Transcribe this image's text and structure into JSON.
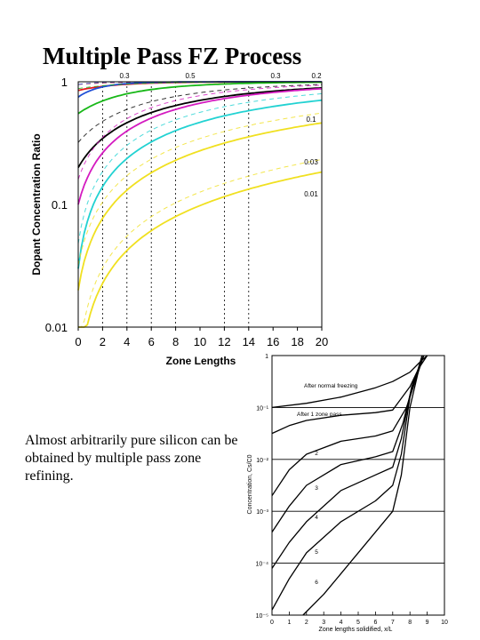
{
  "page": {
    "title": "Multiple Pass FZ Process",
    "caption": "Almost arbitrarily pure silicon can be obtained by multiple pass zone refining."
  },
  "chart_data": [
    {
      "type": "line",
      "xlabel": "Zone Lengths",
      "ylabel": "Dopant Concentration Ratio",
      "x_ticks": [
        "0",
        "2",
        "4",
        "6",
        "8",
        "10",
        "12",
        "14",
        "16",
        "18",
        "20"
      ],
      "y_ticks": [
        "0.01",
        "0.1",
        "1"
      ],
      "xlim": [
        0,
        20
      ],
      "ylim_log10": [
        -2,
        0
      ],
      "yscale": "log",
      "curve_labels": [
        "0.3",
        "0.5",
        "0.3",
        "0.2",
        "0.1",
        "0.03",
        "0.01"
      ],
      "vertical_markers": [
        2,
        4,
        6,
        8,
        12,
        14
      ],
      "series": [
        {
          "color": "#e41a1c",
          "k": 0.3,
          "start": 0.85
        },
        {
          "color": "#1f4fd6",
          "k": 0.5,
          "start": 0.75
        },
        {
          "color": "#18b818",
          "k": 0.2,
          "start": 0.55
        },
        {
          "color": "#000000",
          "k": 0.1,
          "start": 0.2
        },
        {
          "color": "#d41ac0",
          "k": 0.1,
          "start": 0.1
        },
        {
          "color": "#22d2d2",
          "k": 0.06,
          "start": 0.03
        },
        {
          "color": "#f0e020",
          "k": 0.03,
          "start": 0.02
        },
        {
          "color": "#f0e020",
          "k": 0.01,
          "start": 0.003
        }
      ]
    },
    {
      "type": "line",
      "xlabel": "Zone lengths solidified, x/L",
      "ylabel": "Concentration, Cs/C0",
      "x_ticks": [
        "0",
        "1",
        "2",
        "3",
        "4",
        "5",
        "6",
        "7",
        "8",
        "9",
        "10"
      ],
      "y_ticks": [
        "1",
        "10⁻¹",
        "10⁻²",
        "10⁻³",
        "10⁻⁴",
        "10⁻⁵"
      ],
      "xlim": [
        0,
        10
      ],
      "ylim_log10": [
        -5,
        0
      ],
      "yscale": "log",
      "annotations": [
        "After normal freezing",
        "After 1 zone pass",
        "2",
        "3",
        "4",
        "5",
        "6"
      ],
      "series": [
        {
          "name": "After normal freezing",
          "x": [
            0,
            2,
            4,
            6,
            7,
            8,
            8.6,
            9.0
          ],
          "log10y": [
            -1.0,
            -0.92,
            -0.8,
            -0.62,
            -0.5,
            -0.32,
            -0.12,
            0
          ]
        },
        {
          "name": "After 1 zone pass",
          "x": [
            0,
            1,
            2,
            4,
            6,
            7,
            8,
            8.5,
            9.0
          ],
          "log10y": [
            -1.5,
            -1.35,
            -1.25,
            -1.15,
            -1.1,
            -1.05,
            -0.6,
            -0.25,
            0
          ]
        },
        {
          "name": "2",
          "x": [
            0,
            1,
            2,
            4,
            6,
            7,
            7.8,
            8.3,
            8.8
          ],
          "log10y": [
            -2.7,
            -2.2,
            -1.9,
            -1.65,
            -1.55,
            -1.45,
            -1.0,
            -0.5,
            0
          ]
        },
        {
          "name": "3",
          "x": [
            0,
            1,
            2,
            4,
            6,
            7,
            7.6,
            8.2,
            8.8
          ],
          "log10y": [
            -3.4,
            -2.9,
            -2.5,
            -2.1,
            -1.95,
            -1.85,
            -1.3,
            -0.5,
            0
          ]
        },
        {
          "name": "4",
          "x": [
            0,
            1,
            2,
            4,
            6,
            7,
            7.5,
            8.1,
            8.8
          ],
          "log10y": [
            -4.1,
            -3.6,
            -3.2,
            -2.6,
            -2.3,
            -2.15,
            -1.6,
            -0.6,
            0
          ]
        },
        {
          "name": "5",
          "x": [
            0,
            1,
            2,
            4,
            6,
            7,
            7.5,
            8.0,
            8.7
          ],
          "log10y": [
            -4.9,
            -4.3,
            -3.8,
            -3.2,
            -2.8,
            -2.5,
            -1.9,
            -0.8,
            0
          ]
        },
        {
          "name": "6",
          "x": [
            1.8,
            3,
            4,
            5,
            6,
            7,
            7.5,
            8.0,
            8.7
          ],
          "log10y": [
            -5,
            -4.6,
            -4.2,
            -3.8,
            -3.4,
            -3.0,
            -2.3,
            -1.0,
            0
          ]
        }
      ]
    }
  ]
}
